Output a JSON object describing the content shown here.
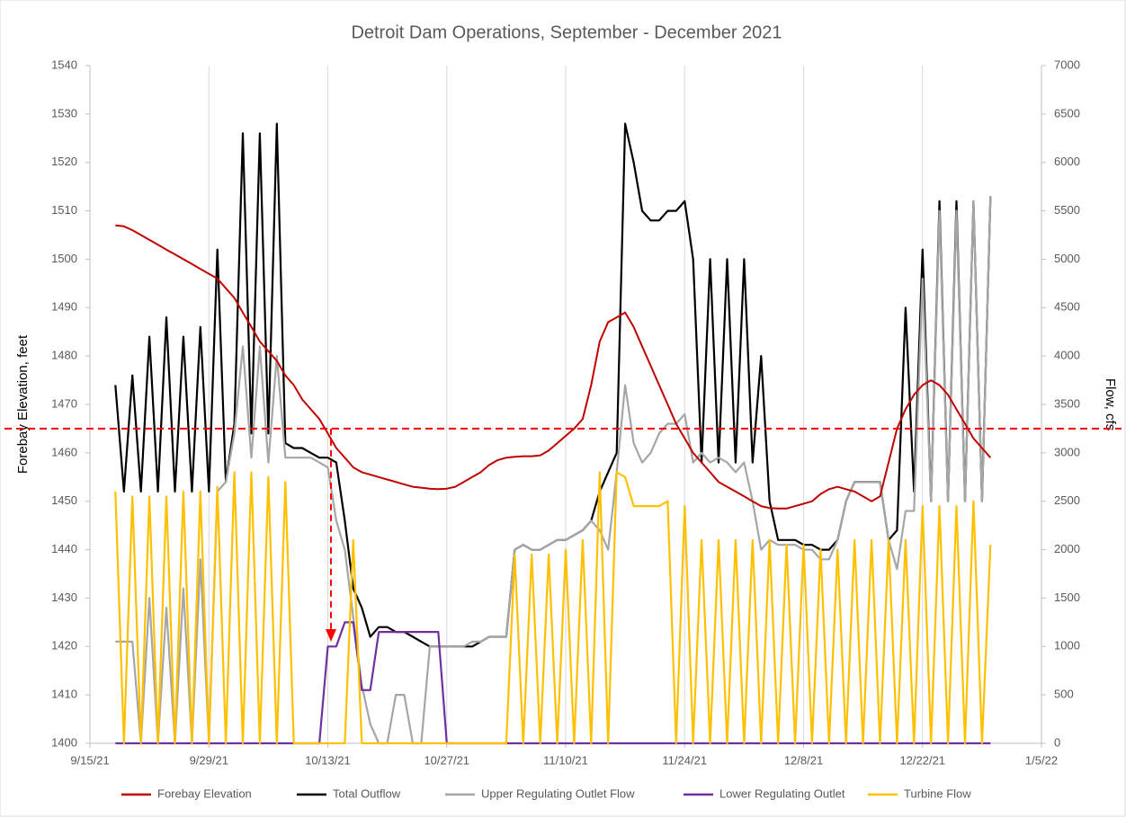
{
  "chart_data": {
    "type": "line",
    "title": "Detroit Dam Operations, September - December 2021",
    "y_label": "Forebay Elevation, feet",
    "y2_label": "Flow, cfs",
    "xlim": [
      "9/15/21",
      "1/5/22"
    ],
    "xticks": [
      "9/15/21",
      "9/29/21",
      "10/13/21",
      "10/27/21",
      "11/10/21",
      "11/24/21",
      "12/8/21",
      "12/22/21",
      "1/5/22"
    ],
    "ylim": [
      1400,
      1540
    ],
    "yticks": [
      1400,
      1410,
      1420,
      1430,
      1440,
      1450,
      1460,
      1470,
      1480,
      1490,
      1500,
      1510,
      1520,
      1530,
      1540
    ],
    "y2lim": [
      0,
      7000
    ],
    "y2ticks": [
      0,
      500,
      1000,
      1500,
      2000,
      2500,
      3000,
      3500,
      4000,
      4500,
      5000,
      5500,
      6000,
      6500,
      7000
    ],
    "grid": "x",
    "legend": "bottom",
    "threshold": 1465,
    "threshold_color": "#ff0000",
    "x": [
      "9/18/21",
      "9/19/21",
      "9/20/21",
      "9/21/21",
      "9/22/21",
      "9/23/21",
      "9/24/21",
      "9/25/21",
      "9/26/21",
      "9/27/21",
      "9/28/21",
      "9/29/21",
      "9/30/21",
      "10/1/21",
      "10/2/21",
      "10/3/21",
      "10/4/21",
      "10/5/21",
      "10/6/21",
      "10/7/21",
      "10/8/21",
      "10/9/21",
      "10/10/21",
      "10/11/21",
      "10/12/21",
      "10/13/21",
      "10/14/21",
      "10/15/21",
      "10/16/21",
      "10/17/21",
      "10/18/21",
      "10/19/21",
      "10/20/21",
      "10/21/21",
      "10/22/21",
      "10/23/21",
      "10/24/21",
      "10/25/21",
      "10/26/21",
      "10/27/21",
      "10/28/21",
      "10/29/21",
      "10/30/21",
      "10/31/21",
      "11/1/21",
      "11/2/21",
      "11/3/21",
      "11/4/21",
      "11/5/21",
      "11/6/21",
      "11/7/21",
      "11/8/21",
      "11/9/21",
      "11/10/21",
      "11/11/21",
      "11/12/21",
      "11/13/21",
      "11/14/21",
      "11/15/21",
      "11/16/21",
      "11/17/21",
      "11/18/21",
      "11/19/21",
      "11/20/21",
      "11/21/21",
      "11/22/21",
      "11/23/21",
      "11/24/21",
      "11/25/21",
      "11/26/21",
      "11/27/21",
      "11/28/21",
      "11/29/21",
      "11/30/21",
      "12/1/21",
      "12/2/21",
      "12/3/21",
      "12/4/21",
      "12/5/21",
      "12/6/21",
      "12/7/21",
      "12/8/21",
      "12/9/21",
      "12/10/21",
      "12/11/21",
      "12/12/21",
      "12/13/21",
      "12/14/21",
      "12/15/21",
      "12/16/21",
      "12/17/21",
      "12/18/21",
      "12/19/21",
      "12/20/21",
      "12/21/21",
      "12/22/21",
      "12/23/21",
      "12/24/21",
      "12/25/21",
      "12/26/21",
      "12/27/21",
      "12/28/21",
      "12/29/21",
      "12/30/21"
    ],
    "series": [
      {
        "name": "Forebay Elevation",
        "color": "#c00000",
        "axis": "y",
        "values": [
          1507,
          1506.8,
          1506,
          1505,
          1504,
          1503,
          1502,
          1501,
          1500,
          1499,
          1498,
          1497,
          1496,
          1494,
          1492,
          1489,
          1486,
          1483,
          1481,
          1479,
          1476,
          1474,
          1471,
          1469,
          1467,
          1464,
          1461,
          1459,
          1457,
          1456,
          1455.5,
          1455,
          1454.5,
          1454,
          1453.5,
          1453,
          1452.8,
          1452.6,
          1452.5,
          1452.6,
          1453,
          1454,
          1455,
          1456,
          1457.5,
          1458.5,
          1459,
          1459.2,
          1459.3,
          1459.3,
          1459.5,
          1460.5,
          1462,
          1463.5,
          1465,
          1467,
          1474,
          1483,
          1487,
          1488,
          1489,
          1486,
          1482,
          1478,
          1474,
          1470,
          1466,
          1463,
          1460,
          1458,
          1456,
          1454,
          1453,
          1452,
          1451,
          1450,
          1449,
          1448.6,
          1448.5,
          1448.5,
          1449,
          1449.5,
          1450,
          1451.5,
          1452.5,
          1453,
          1452.5,
          1452,
          1451,
          1450,
          1451,
          1458,
          1465,
          1469,
          1472,
          1474,
          1475,
          1474,
          1472,
          1469,
          1466,
          1463,
          1461,
          1459
        ]
      },
      {
        "name": "Total Outflow",
        "color": "#000000",
        "axis": "y2",
        "values": [
          3700,
          2600,
          3800,
          2600,
          4200,
          2600,
          4400,
          2600,
          4200,
          2600,
          4300,
          2600,
          5100,
          2700,
          3300,
          6300,
          3200,
          6300,
          3200,
          6400,
          3100,
          3050,
          3050,
          3000,
          2950,
          2950,
          2900,
          2300,
          1600,
          1400,
          1100,
          1200,
          1200,
          1150,
          1150,
          1100,
          1050,
          1000,
          1000,
          1000,
          1000,
          1000,
          1000,
          1050,
          1100,
          1100,
          1100,
          2000,
          2050,
          2000,
          2000,
          2050,
          2100,
          2100,
          2150,
          2200,
          2300,
          2600,
          2800,
          3000,
          6400,
          6000,
          5500,
          5400,
          5400,
          5500,
          5500,
          5600,
          5000,
          2900,
          5000,
          2900,
          5000,
          2900,
          5000,
          2900,
          4000,
          2500,
          2100,
          2100,
          2100,
          2050,
          2050,
          2000,
          2000,
          2100,
          2500,
          2700,
          2700,
          2700,
          2700,
          2100,
          2200,
          4500,
          2600,
          5100,
          2500,
          5600,
          2500,
          5600,
          2500,
          5600,
          2500,
          5650
        ]
      },
      {
        "name": "Upper Regulating Outlet Flow",
        "color": "#a6a6a6",
        "axis": "y2",
        "values": [
          1050,
          1050,
          1050,
          0,
          1500,
          0,
          1400,
          0,
          1600,
          0,
          1900,
          0,
          2600,
          2700,
          3200,
          4100,
          2950,
          4100,
          2900,
          4000,
          2950,
          2950,
          2950,
          2950,
          2900,
          2850,
          2300,
          2000,
          1300,
          600,
          200,
          0,
          0,
          500,
          500,
          0,
          0,
          1000,
          1000,
          1000,
          1000,
          1000,
          1050,
          1050,
          1100,
          1100,
          1100,
          2000,
          2050,
          2000,
          2000,
          2050,
          2100,
          2100,
          2150,
          2200,
          2300,
          2200,
          2000,
          2800,
          3700,
          3100,
          2900,
          3000,
          3200,
          3300,
          3300,
          3400,
          2900,
          3000,
          2900,
          2950,
          2900,
          2800,
          2900,
          2500,
          2000,
          2100,
          2050,
          2050,
          2050,
          2000,
          2000,
          1900,
          1900,
          2100,
          2500,
          2700,
          2700,
          2700,
          2700,
          2100,
          1800,
          2400,
          2400,
          4800,
          2500,
          5500,
          2500,
          5500,
          2500,
          5600,
          2500,
          5650
        ]
      },
      {
        "name": "Lower Regulating Outlet",
        "color": "#7030a0",
        "axis": "y2",
        "values": [
          0,
          0,
          0,
          0,
          0,
          0,
          0,
          0,
          0,
          0,
          0,
          0,
          0,
          0,
          0,
          0,
          0,
          0,
          0,
          0,
          0,
          0,
          0,
          0,
          0,
          1000,
          1000,
          1250,
          1250,
          550,
          550,
          1150,
          1150,
          1150,
          1150,
          1150,
          1150,
          1150,
          1150,
          0,
          0,
          0,
          0,
          0,
          0,
          0,
          0,
          0,
          0,
          0,
          0,
          0,
          0,
          0,
          0,
          0,
          0,
          0,
          0,
          0,
          0,
          0,
          0,
          0,
          0,
          0,
          0,
          0,
          0,
          0,
          0,
          0,
          0,
          0,
          0,
          0,
          0,
          0,
          0,
          0,
          0,
          0,
          0,
          0,
          0,
          0,
          0,
          0,
          0,
          0,
          0,
          0,
          0,
          0,
          0,
          0,
          0,
          0,
          0,
          0,
          0,
          0,
          0,
          0
        ]
      },
      {
        "name": "Turbine Flow",
        "color": "#ffc000",
        "axis": "y2",
        "values": [
          2600,
          0,
          2550,
          0,
          2550,
          0,
          2550,
          0,
          2600,
          0,
          2600,
          0,
          2650,
          0,
          2800,
          0,
          2800,
          0,
          2750,
          0,
          2700,
          0,
          0,
          0,
          0,
          0,
          0,
          0,
          2100,
          0,
          0,
          0,
          0,
          0,
          0,
          0,
          0,
          0,
          0,
          0,
          0,
          0,
          0,
          0,
          0,
          0,
          0,
          1950,
          0,
          1950,
          0,
          1950,
          0,
          2000,
          0,
          2100,
          0,
          2800,
          0,
          2800,
          2750,
          2450,
          2450,
          2450,
          2450,
          2500,
          0,
          2450,
          0,
          2100,
          0,
          2100,
          0,
          2100,
          0,
          2100,
          0,
          2100,
          0,
          2050,
          0,
          2050,
          0,
          2000,
          0,
          2000,
          0,
          2100,
          0,
          2100,
          0,
          2100,
          0,
          2100,
          0,
          2450,
          0,
          2450,
          0,
          2450,
          0,
          2500,
          0,
          2050
        ]
      }
    ]
  }
}
